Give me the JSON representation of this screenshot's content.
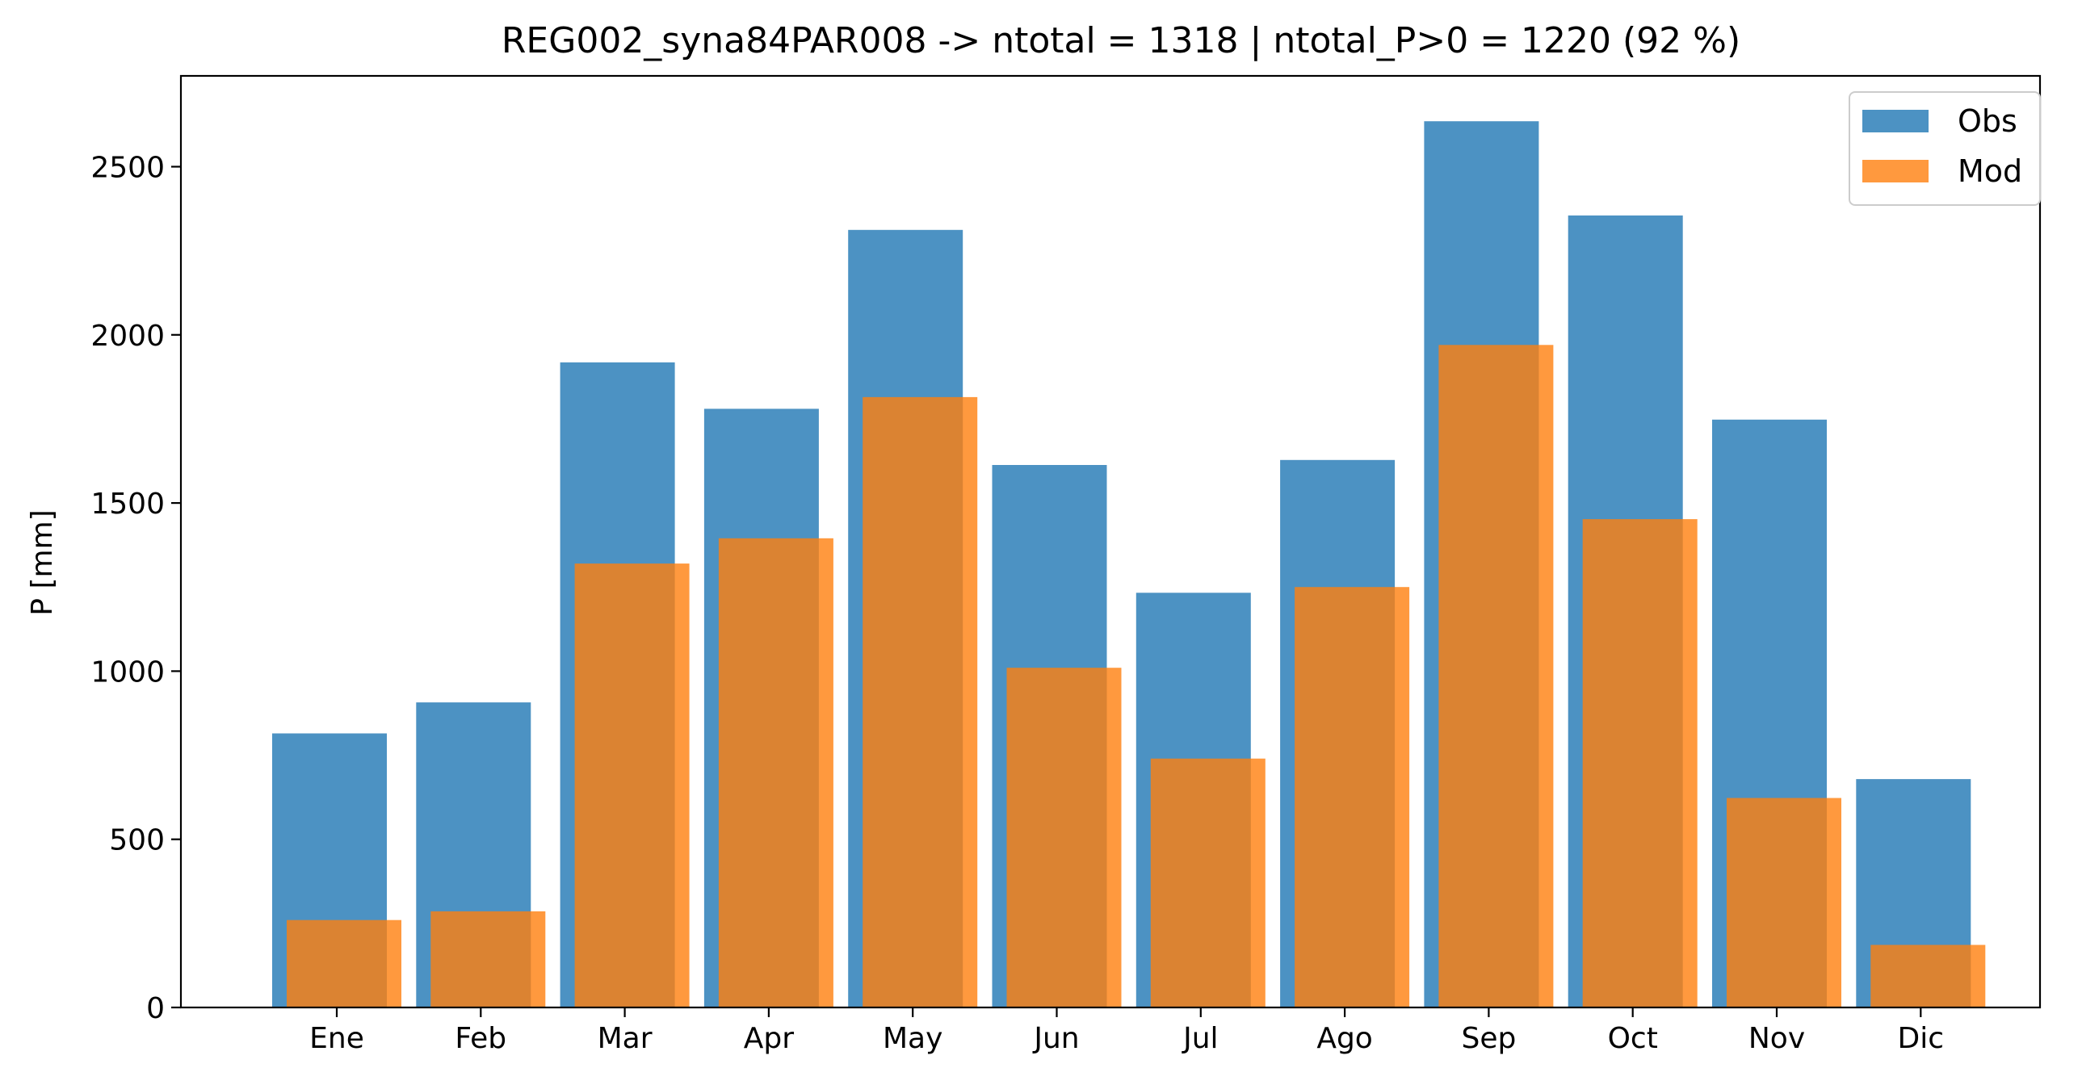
{
  "chart_data": {
    "type": "bar",
    "title": "REG002_syna84PAR008 -> ntotal = 1318 | ntotal_P>0 = 1220 (92 %)",
    "xlabel": "",
    "ylabel": "P [mm]",
    "ylim": [
      0,
      2770
    ],
    "yticks": [
      0,
      500,
      1000,
      1500,
      2000,
      2500
    ],
    "categories": [
      "Ene",
      "Feb",
      "Mar",
      "Apr",
      "May",
      "Jun",
      "Jul",
      "Ago",
      "Sep",
      "Oct",
      "Nov",
      "Dic"
    ],
    "series": [
      {
        "name": "Obs",
        "color": "#1f77b4",
        "opacity": 0.8,
        "values": [
          815,
          907,
          1918,
          1780,
          2312,
          1613,
          1233,
          1628,
          2635,
          2355,
          1748,
          679
        ]
      },
      {
        "name": "Mod",
        "color": "#ff7f0e",
        "opacity": 0.8,
        "values": [
          260,
          286,
          1320,
          1395,
          1815,
          1010,
          740,
          1250,
          1970,
          1452,
          623,
          186
        ]
      }
    ],
    "grid": false,
    "legend_position": "top-right"
  }
}
